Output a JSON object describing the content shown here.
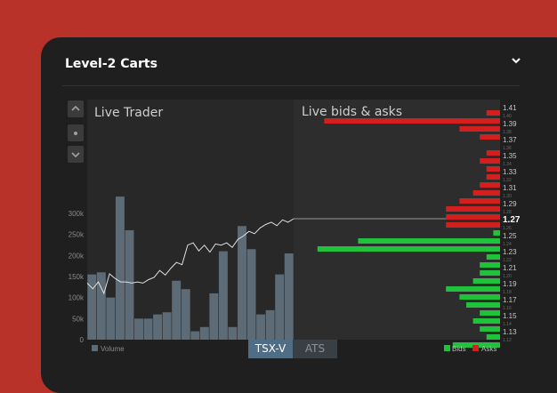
{
  "panel": {
    "title": "Level-2 Carts"
  },
  "left_chart": {
    "title": "Live Trader"
  },
  "right_chart": {
    "title": "Live bids & asks"
  },
  "tabs": [
    {
      "label": "TSX-V",
      "active": true
    },
    {
      "label": "ATS",
      "active": false
    }
  ],
  "legend": {
    "volume": "Volume",
    "bids": "Bids",
    "asks": "Asks"
  },
  "colors": {
    "background": "#b8322a",
    "card": "#1f1f1f",
    "volume": "#5c6b76",
    "bids": "#1fc23a",
    "asks": "#d41f1f",
    "price_line": "#e0e0e0"
  },
  "chart_data": [
    {
      "type": "bar",
      "title": "Live Trader",
      "ylabel": "",
      "ylim": [
        0,
        300000
      ],
      "y_ticks": [
        "0",
        "50k",
        "100k",
        "150k",
        "200k",
        "250k",
        "300k"
      ],
      "volume_series_name": "Volume",
      "volumes": [
        155000,
        160000,
        100000,
        340000,
        260000,
        50000,
        50000,
        60000,
        65000,
        140000,
        120000,
        20000,
        30000,
        110000,
        210000,
        30000,
        270000,
        215000,
        60000,
        70000,
        155000,
        205000
      ],
      "price_line": [
        0.63,
        0.68,
        0.62,
        0.72,
        0.55,
        0.59,
        0.62,
        0.62,
        0.63,
        0.62,
        0.63,
        0.6,
        0.58,
        0.52,
        0.56,
        0.5,
        0.45,
        0.47,
        0.3,
        0.28,
        0.35,
        0.3,
        0.36,
        0.29,
        0.3,
        0.28,
        0.32,
        0.25,
        0.22,
        0.18,
        0.2,
        0.15,
        0.12,
        0.1,
        0.13,
        0.08,
        0.1,
        0.07
      ]
    },
    {
      "type": "bar",
      "title": "Live bids & asks",
      "price_levels": [
        "1.41",
        "1.40",
        "1.39",
        "1.38",
        "1.37",
        "1.36",
        "1.35",
        "1.34",
        "1.33",
        "1.32",
        "1.31",
        "1.30",
        "1.29",
        "1.28",
        "1.27",
        "1.26",
        "1.25",
        "1.24",
        "1.23",
        "1.22",
        "1.21",
        "1.20",
        "1.19",
        "1.18",
        "1.17",
        "1.16",
        "1.15",
        "1.14",
        "1.13",
        "1.12"
      ],
      "current_price": "1.27",
      "asks": [
        2,
        26,
        6,
        3,
        0,
        2,
        3,
        2,
        2,
        3,
        4,
        6,
        8,
        8,
        8,
        0,
        0,
        0,
        0,
        0,
        0,
        0,
        0,
        0,
        0,
        0,
        0,
        0,
        0,
        0
      ],
      "bids": [
        0,
        0,
        0,
        0,
        0,
        0,
        0,
        0,
        0,
        0,
        0,
        0,
        0,
        0,
        0,
        1,
        21,
        27,
        2,
        3,
        3,
        4,
        8,
        6,
        5,
        3,
        4,
        3,
        2,
        7
      ]
    }
  ]
}
